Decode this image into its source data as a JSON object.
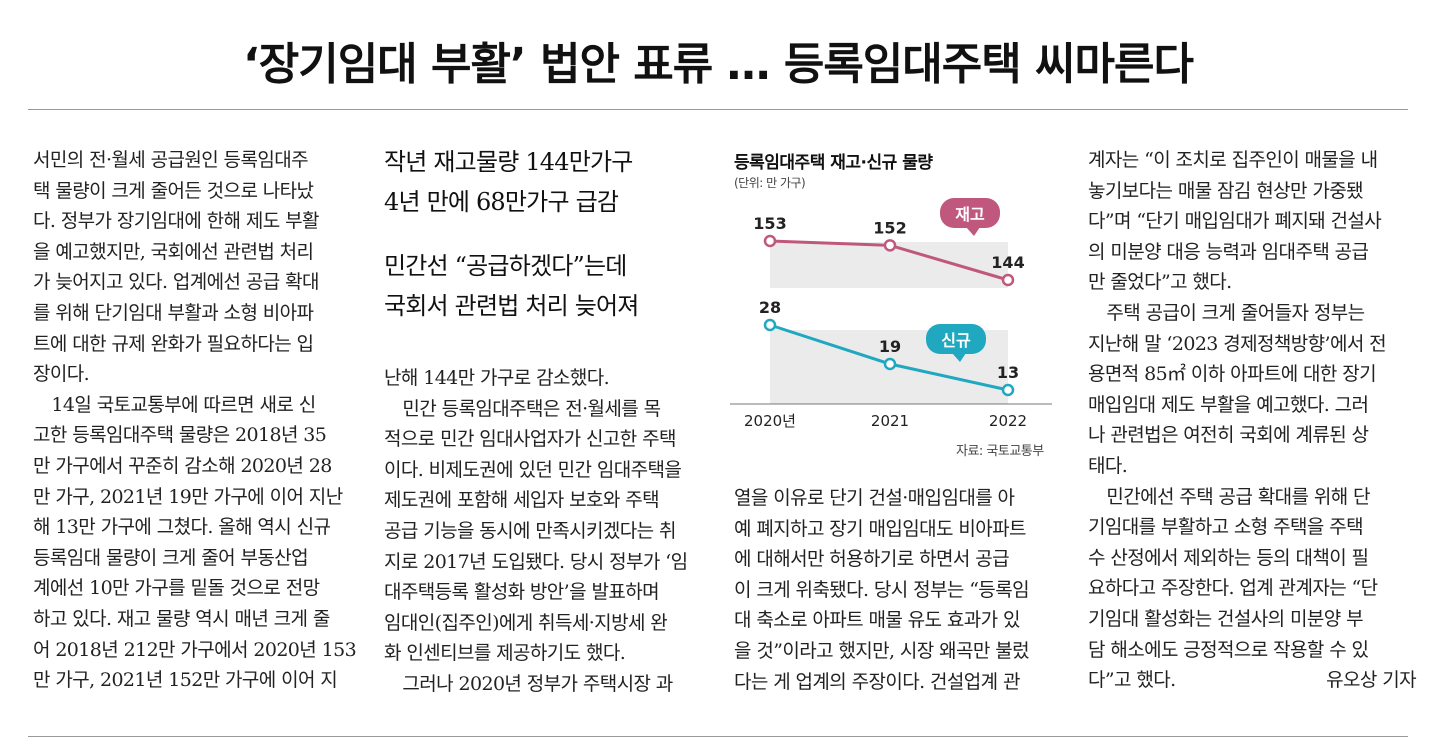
{
  "headline": "‘장기임대 부활’ 법안 표류 … 등록임대주택 씨마른다",
  "col1": [
    "서민의 전·월세 공급원인 등록임대주",
    "택 물량이 크게 줄어든 것으로 나타났",
    "다. 정부가 장기임대에 한해 제도 부활",
    "을 예고했지만, 국회에선 관련법 처리",
    "가 늦어지고 있다. 업계에선 공급 확대",
    "를 위해 단기임대 부활과 소형 비아파",
    "트에 대한 규제 완화가 필요하다는 입",
    "장이다.",
    "　14일 국토교통부에 따르면 새로 신",
    "고한 등록임대주택 물량은 2018년 35",
    "만 가구에서 꾸준히 감소해 2020년 28",
    "만 가구, 2021년 19만 가구에 이어 지난",
    "해 13만 가구에 그쳤다. 올해 역시 신규",
    "등록임대 물량이 크게 줄어 부동산업",
    "계에선 10만 가구를 밑돌 것으로 전망",
    "하고 있다. 재고 물량 역시 매년 크게 줄",
    "어 2018년 212만 가구에서 2020년 153",
    "만 가구, 2021년 152만 가구에 이어 지"
  ],
  "subheads": {
    "a1": "작년 재고물량 144만가구",
    "a2": "4년 만에 68만가구 급감",
    "b1": "민간선 “공급하겠다”는데",
    "b2": "국회서 관련법 처리 늦어져"
  },
  "col2": [
    "난해 144만 가구로 감소했다.",
    "　민간 등록임대주택은 전·월세를 목",
    "적으로 민간 임대사업자가 신고한 주택",
    "이다. 비제도권에 있던 민간 임대주택을",
    "제도권에 포함해 세입자 보호와 주택",
    "공급 기능을 동시에 만족시키겠다는 취",
    "지로 2017년 도입됐다. 당시 정부가 ‘임",
    "대주택등록 활성화 방안’을 발표하며",
    "임대인(집주인)에게 취득세·지방세 완",
    "화 인센티브를 제공하기도 했다.",
    "　그러나 2020년 정부가 주택시장 과"
  ],
  "col3": [
    "열을 이유로 단기 건설·매입임대를 아",
    "예 폐지하고 장기 매입임대도 비아파트",
    "에 대해서만 허용하기로 하면서 공급",
    "이 크게 위축됐다. 당시 정부는 “등록임",
    "대 축소로 아파트 매물 유도 효과가 있",
    "을 것”이라고 했지만, 시장 왜곡만 불렀",
    "다는 게 업계의 주장이다. 건설업계 관"
  ],
  "col4": [
    "계자는 “이 조치로 집주인이 매물을 내",
    "놓기보다는 매물 잠김 현상만 가중됐",
    "다”며 “단기 매입임대가 폐지돼 건설사",
    "의 미분양 대응 능력과 임대주택 공급",
    "만 줄었다”고 했다.",
    "　주택 공급이 크게 줄어들자 정부는",
    "지난해 말 ‘2023 경제정책방향’에서 전",
    "용면적 85㎡ 이하 아파트에 대한 장기",
    "매입임대 제도 부활을 예고했다. 그러",
    "나 관련법은 여전히 국회에 계류된 상",
    "태다.",
    "　민간에선 주택 공급 확대를 위해 단",
    "기임대를 부활하고 소형 주택을 주택",
    "수 산정에서 제외하는 등의 대책이 필",
    "요하다고 주장한다. 업계 관계자는 “단",
    "기임대 활성화는 건설사의 미분양 부",
    "담 해소에도 긍정적으로 작용할 수 있",
    "다”고 했다."
  ],
  "byline": "유오상 기자",
  "chart_data": {
    "type": "line",
    "title": "등록임대주택 재고·신규 물량",
    "unit": "(단위: 만 가구)",
    "categories": [
      "2020년",
      "2021",
      "2022"
    ],
    "series": [
      {
        "name": "재고",
        "values": [
          153,
          152,
          144
        ],
        "color": "#c0587e"
      },
      {
        "name": "신규",
        "values": [
          28,
          19,
          13
        ],
        "color": "#1fa8bf"
      }
    ],
    "band_color": "#ebebeb",
    "source": "자료: 국토교통부"
  }
}
